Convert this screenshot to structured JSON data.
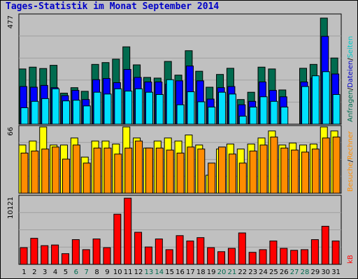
{
  "title": "Tages-Statistik im Monat September 2014",
  "legend": {
    "top": [
      "Anfragen",
      "/",
      "Dateien",
      "/",
      "Seiten"
    ],
    "mid": [
      "Besuche",
      "/",
      "Rechner"
    ],
    "bottom": [
      "kB"
    ]
  },
  "colors": {
    "anfragen": "#006b4f",
    "dateien": "#0000ff",
    "seiten": "#00e0ff",
    "besuche": "#ffff00",
    "rechner": "#ff8c00",
    "kb": "#ff0000",
    "title": "#0000c8",
    "weekday_label": "#000000",
    "weekend_label": "#006b4f",
    "legend_anfragen": "#006b4f",
    "legend_dateien": "#0000c8",
    "legend_seiten": "#00c8c8",
    "legend_besuche": "#ff8c00",
    "legend_rechner": "#ff8c00",
    "legend_kb": "#ff0000"
  },
  "chart_data": [
    {
      "type": "bar",
      "panel": "requests-files-pages",
      "max_label": "477",
      "ylim": [
        0,
        477
      ],
      "categories": [
        "1",
        "2",
        "3",
        "4",
        "5",
        "6",
        "7",
        "8",
        "9",
        "10",
        "11",
        "12",
        "13",
        "14",
        "15",
        "16",
        "17",
        "18",
        "19",
        "20",
        "21",
        "22",
        "23",
        "24",
        "25",
        "26",
        "27",
        "28",
        "29",
        "30",
        "31"
      ],
      "weekend_days": [
        "6",
        "7",
        "13",
        "14",
        "20",
        "21",
        "27",
        "28"
      ],
      "series": [
        {
          "name": "Anfragen",
          "values": [
            242,
            250,
            244,
            258,
            136,
            160,
            144,
            262,
            270,
            285,
            339,
            260,
            205,
            202,
            275,
            215,
            322,
            232,
            162,
            218,
            245,
            108,
            140,
            250,
            242,
            150,
            0,
            245,
            262,
            465,
            290
          ]
        },
        {
          "name": "Dateien",
          "values": [
            165,
            162,
            170,
            160,
            125,
            148,
            108,
            195,
            200,
            182,
            240,
            205,
            185,
            185,
            175,
            190,
            255,
            190,
            110,
            160,
            165,
            85,
            100,
            185,
            148,
            120,
            0,
            185,
            202,
            385,
            220
          ]
        },
        {
          "name": "Seiten",
          "values": [
            72,
            100,
            112,
            155,
            102,
            105,
            80,
            140,
            132,
            155,
            145,
            155,
            140,
            130,
            195,
            85,
            142,
            98,
            75,
            140,
            132,
            35,
            75,
            120,
            100,
            75,
            0,
            165,
            212,
            230,
            130
          ]
        }
      ]
    },
    {
      "type": "bar",
      "panel": "visits-hosts",
      "max_label": "66",
      "ylim": [
        0,
        66
      ],
      "categories": [
        "1",
        "2",
        "3",
        "4",
        "5",
        "6",
        "7",
        "8",
        "9",
        "10",
        "11",
        "12",
        "13",
        "14",
        "15",
        "16",
        "17",
        "18",
        "19",
        "20",
        "21",
        "22",
        "23",
        "24",
        "25",
        "26",
        "27",
        "28",
        "29",
        "30",
        "31"
      ],
      "series": [
        {
          "name": "Besuche",
          "values": [
            48,
            52,
            66,
            48,
            48,
            55,
            36,
            52,
            52,
            49,
            66,
            55,
            45,
            52,
            55,
            52,
            58,
            48,
            18,
            44,
            49,
            44,
            49,
            55,
            62,
            48,
            50,
            48,
            49,
            66,
            62
          ]
        },
        {
          "name": "Rechner",
          "values": [
            40,
            42,
            44,
            46,
            34,
            48,
            30,
            45,
            45,
            39,
            45,
            52,
            45,
            45,
            43,
            40,
            46,
            44,
            30,
            46,
            39,
            30,
            42,
            48,
            56,
            45,
            43,
            41,
            44,
            55,
            56
          ]
        }
      ]
    },
    {
      "type": "bar",
      "panel": "kilobytes",
      "max_label": "10121",
      "ylim": [
        0,
        10121
      ],
      "categories": [
        "1",
        "2",
        "3",
        "4",
        "5",
        "6",
        "7",
        "8",
        "9",
        "10",
        "11",
        "12",
        "13",
        "14",
        "15",
        "16",
        "17",
        "18",
        "19",
        "20",
        "21",
        "22",
        "23",
        "24",
        "25",
        "26",
        "27",
        "28",
        "29",
        "30",
        "31"
      ],
      "series": [
        {
          "name": "kB",
          "values": [
            2500,
            3900,
            2800,
            2900,
            1600,
            3700,
            2200,
            3800,
            2500,
            7500,
            9900,
            4800,
            2600,
            3800,
            2200,
            4300,
            3500,
            4000,
            2500,
            1900,
            2400,
            4700,
            1800,
            2200,
            3500,
            2400,
            2100,
            2200,
            3700,
            5700,
            3500
          ]
        }
      ]
    }
  ]
}
